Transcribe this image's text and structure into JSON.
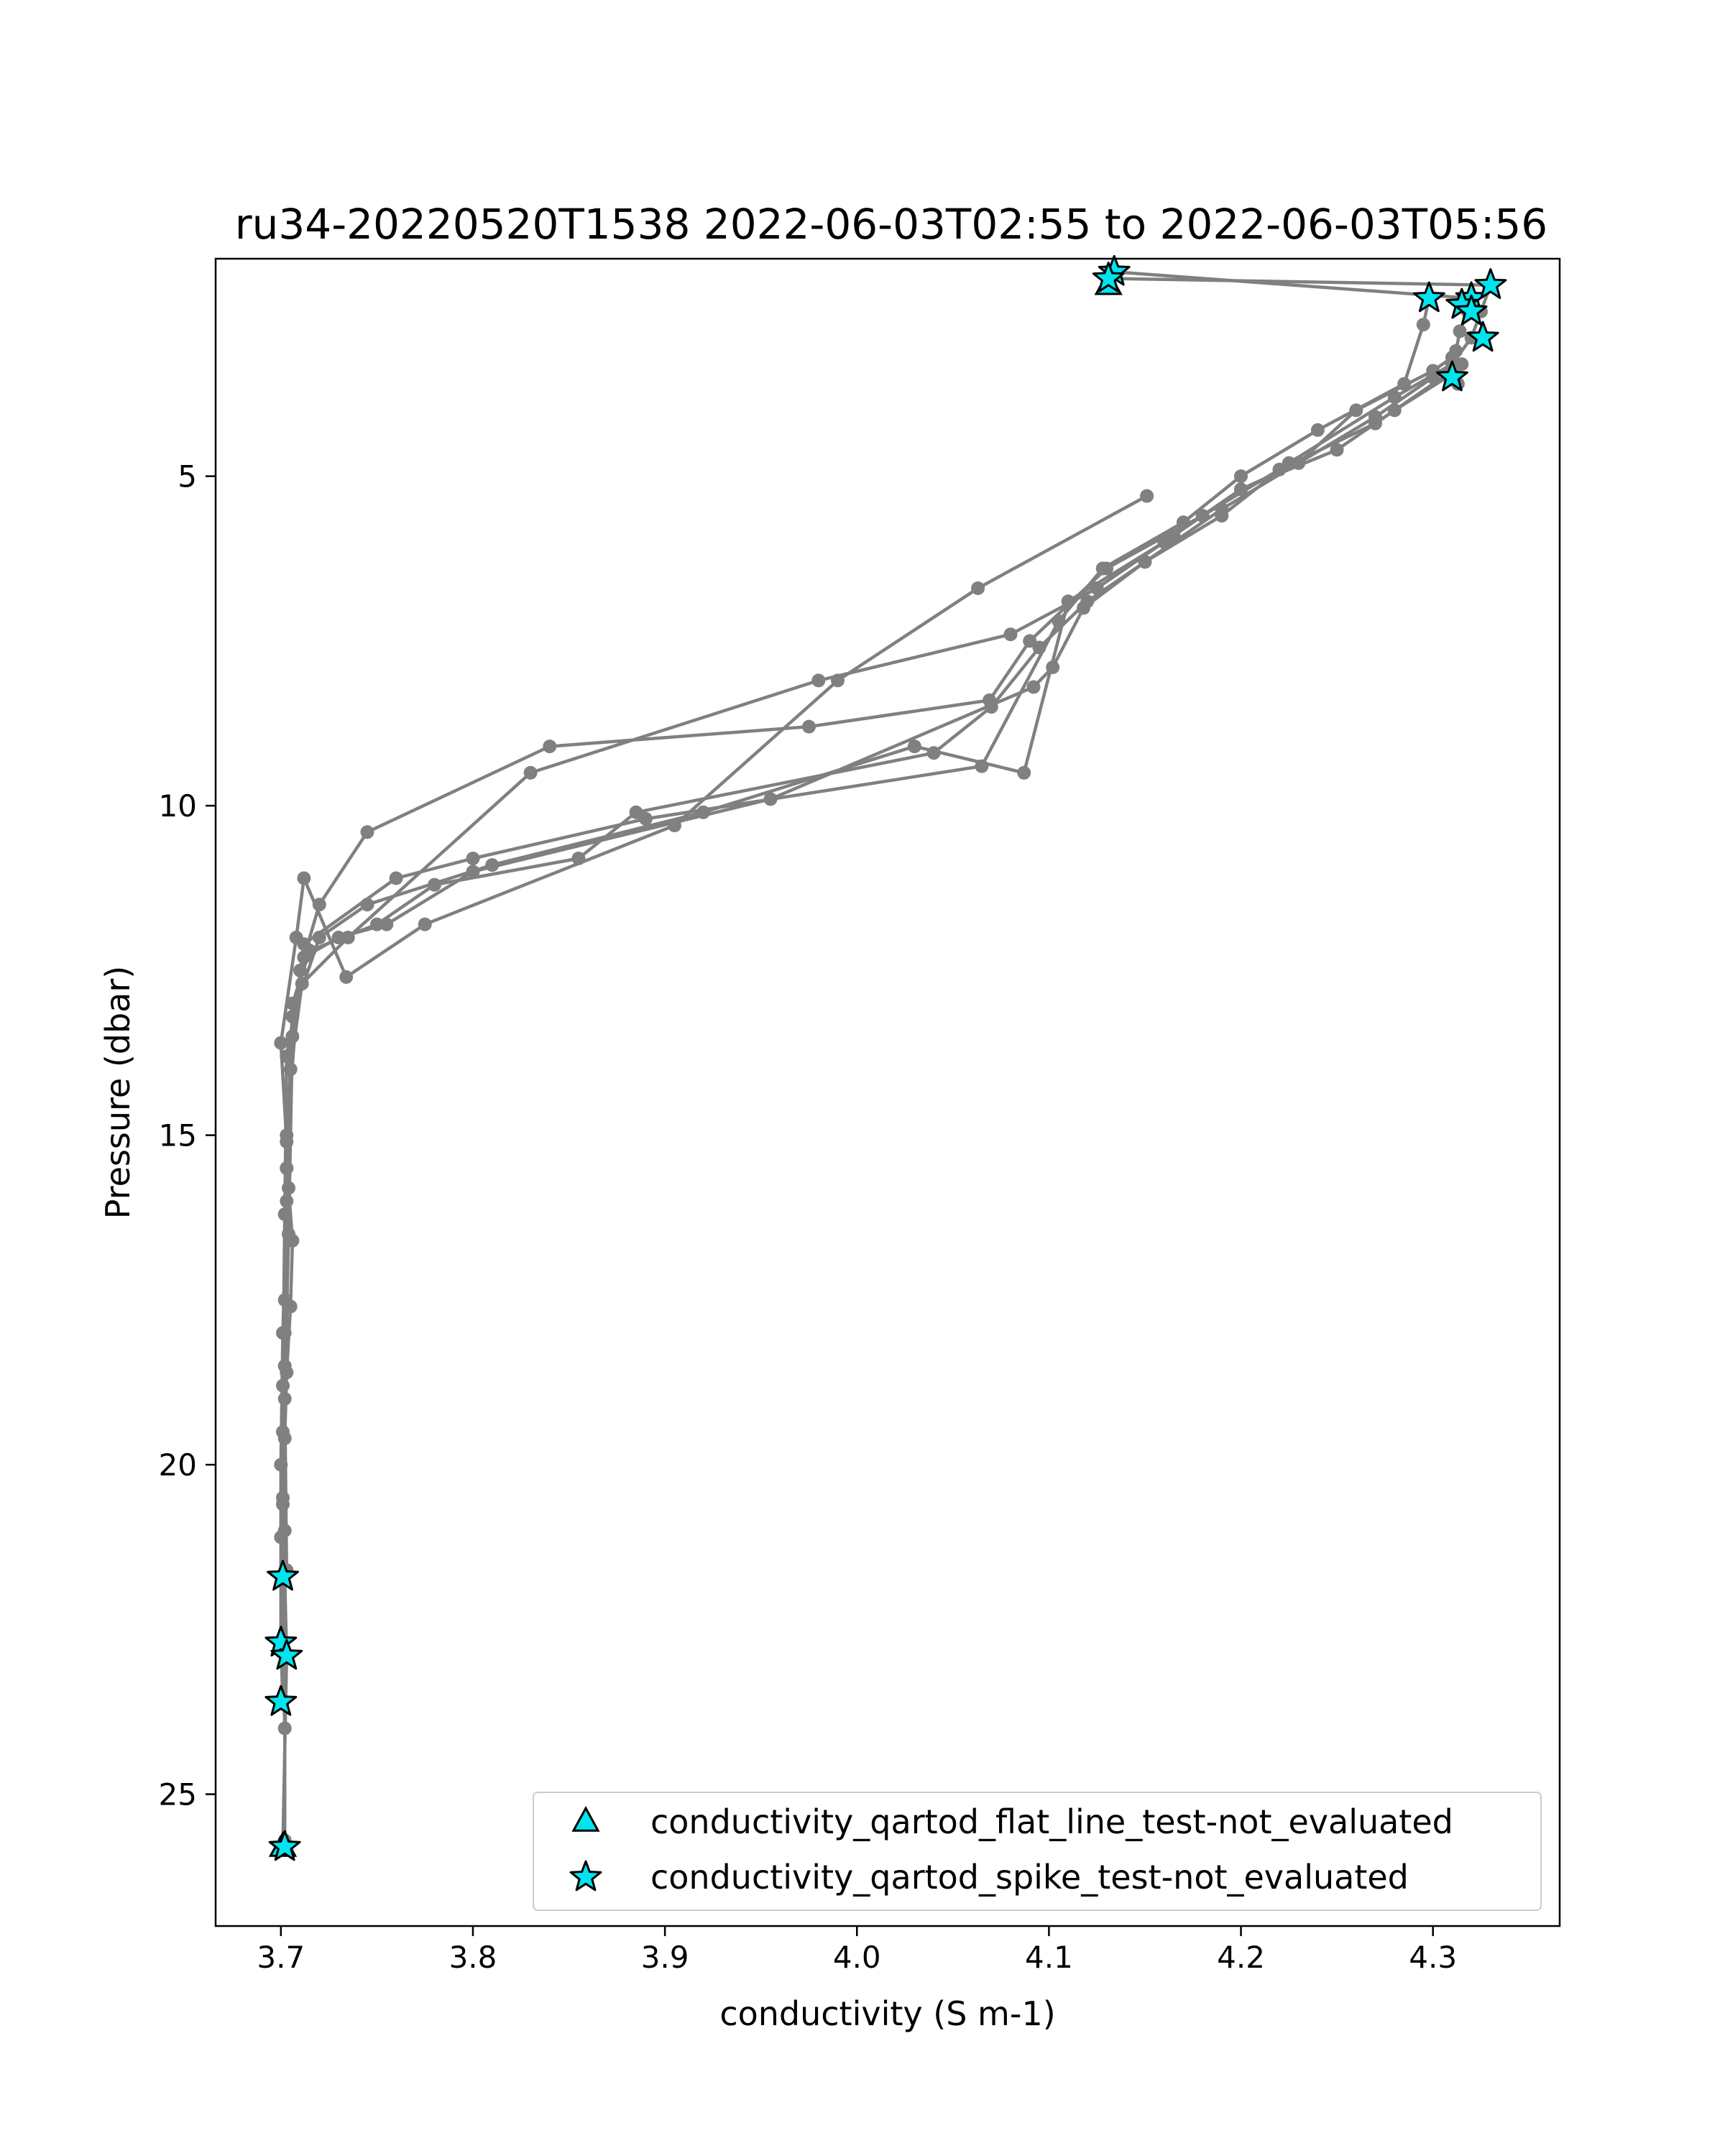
{
  "chart_data": {
    "type": "scatter",
    "title": "ru34-20220520T1538 2022-06-03T02:55 to 2022-06-03T05:56",
    "xlabel": "conductivity (S m-1)",
    "ylabel": "Pressure (dbar)",
    "xlim": [
      3.666,
      4.366
    ],
    "ylim": [
      27.0,
      1.7
    ],
    "y_inverted": true,
    "grid": false,
    "x_ticks": [
      {
        "value": 3.7,
        "label": "3.7"
      },
      {
        "value": 3.8,
        "label": "3.8"
      },
      {
        "value": 3.9,
        "label": "3.9"
      },
      {
        "value": 4.0,
        "label": "4.0"
      },
      {
        "value": 4.1,
        "label": "4.1"
      },
      {
        "value": 4.2,
        "label": "4.2"
      },
      {
        "value": 4.3,
        "label": "4.3"
      }
    ],
    "y_ticks": [
      {
        "value": 5,
        "label": "5"
      },
      {
        "value": 10,
        "label": "10"
      },
      {
        "value": 15,
        "label": "15"
      },
      {
        "value": 20,
        "label": "20"
      },
      {
        "value": 25,
        "label": "25"
      }
    ],
    "series_color": "#808080",
    "flag_color": "#00e5ee",
    "profiles": [
      {
        "x": [
          4.134,
          4.32,
          4.318,
          4.314,
          4.312,
          4.31,
          4.27,
          4.22,
          4.18,
          4.13,
          4.09,
          4.069,
          3.975,
          3.84,
          3.745,
          3.72,
          3.71,
          3.703,
          3.702,
          3.701,
          3.702,
          3.701,
          3.702,
          3.702
        ],
        "y": [
          1.9,
          2.3,
          2.5,
          2.8,
          3.1,
          3.4,
          4.2,
          4.9,
          5.6,
          6.4,
          7.5,
          8.4,
          8.8,
          9.1,
          10.4,
          11.5,
          12.5,
          15.0,
          17.5,
          19.5,
          21.0,
          22.8,
          24.0,
          25.7
        ]
      },
      {
        "x": [
          4.131,
          4.33,
          4.325,
          4.32,
          4.31,
          4.28,
          4.225,
          4.19,
          4.15,
          4.12,
          4.095,
          4.07,
          4.04,
          3.885,
          3.855,
          3.78,
          3.75,
          3.715,
          3.706,
          3.703,
          3.702,
          3.701,
          3.703,
          3.701
        ],
        "y": [
          2.0,
          2.1,
          2.5,
          2.9,
          3.3,
          3.8,
          4.8,
          5.6,
          6.3,
          6.9,
          7.6,
          8.5,
          9.2,
          10.1,
          10.8,
          11.2,
          11.8,
          12.2,
          13.0,
          15.5,
          18.5,
          21.7,
          22.9,
          25.8
        ]
      },
      {
        "x": [
          4.31,
          4.3,
          4.26,
          4.23,
          4.2,
          4.165,
          4.125,
          4.08,
          3.98,
          3.83,
          3.735,
          3.711,
          3.705,
          3.703,
          3.701,
          3.7,
          3.7,
          3.701
        ],
        "y": [
          3.2,
          3.4,
          4.0,
          4.8,
          5.2,
          5.9,
          6.7,
          7.4,
          8.1,
          9.5,
          12.0,
          12.7,
          14.0,
          16.0,
          18.0,
          20.0,
          22.7,
          23.6
        ]
      },
      {
        "x": [
          4.313,
          4.31,
          4.28,
          4.25,
          4.2,
          4.16,
          4.11,
          4.087,
          4.03,
          3.92,
          3.81,
          3.745,
          3.72,
          3.706,
          3.703,
          3.702,
          3.701,
          3.703
        ],
        "y": [
          3.6,
          3.45,
          4.0,
          4.6,
          5.2,
          6.0,
          6.9,
          9.5,
          9.1,
          10.1,
          10.9,
          11.5,
          12.0,
          13.2,
          15.5,
          18.0,
          20.5,
          22.9
        ]
      },
      {
        "x": [
          4.298,
          4.295,
          4.285,
          4.24,
          4.2,
          4.17,
          4.128,
          4.105,
          4.065,
          3.89,
          3.8,
          3.76,
          3.712,
          3.706,
          3.704,
          3.702,
          3.703
        ],
        "y": [
          2.3,
          2.7,
          3.6,
          4.3,
          5.0,
          5.7,
          6.4,
          7.2,
          9.4,
          10.2,
          10.8,
          11.1,
          12.1,
          13.5,
          16.5,
          19.0,
          21.6
        ]
      },
      {
        "x": [
          4.315,
          4.3,
          4.27,
          4.23,
          4.19,
          4.15,
          4.118,
          4.102,
          4.092,
          3.955,
          3.8,
          3.755,
          3.73,
          3.712,
          3.703,
          3.702,
          3.701,
          3.7,
          3.701
        ],
        "y": [
          3.3,
          3.5,
          4.1,
          4.8,
          5.5,
          6.3,
          7.0,
          7.9,
          8.2,
          9.9,
          11.0,
          11.8,
          12.0,
          12.3,
          13.8,
          16.2,
          18.8,
          21.1,
          21.7
        ]
      },
      {
        "x": [
          4.151,
          4.063,
          3.99,
          3.905,
          3.775,
          3.734,
          3.712,
          3.708,
          3.7,
          3.703,
          3.704,
          3.706,
          3.705,
          3.703,
          3.702,
          3.701
        ],
        "y": [
          5.3,
          6.7,
          8.1,
          10.3,
          11.8,
          12.6,
          11.1,
          12.0,
          13.6,
          15.1,
          15.8,
          16.6,
          17.6,
          18.6,
          19.6,
          20.6
        ]
      }
    ],
    "flagged_points": [
      {
        "x": 4.131,
        "y": 2.1,
        "test": "flat_line"
      },
      {
        "x": 3.701,
        "y": 25.8,
        "test": "flat_line"
      },
      {
        "x": 4.134,
        "y": 1.9,
        "test": "spike"
      },
      {
        "x": 4.131,
        "y": 2.0,
        "test": "spike"
      },
      {
        "x": 4.32,
        "y": 2.3,
        "test": "spike"
      },
      {
        "x": 4.33,
        "y": 2.1,
        "test": "spike"
      },
      {
        "x": 4.298,
        "y": 2.3,
        "test": "spike"
      },
      {
        "x": 4.315,
        "y": 2.4,
        "test": "spike"
      },
      {
        "x": 4.32,
        "y": 2.5,
        "test": "spike"
      },
      {
        "x": 4.326,
        "y": 2.9,
        "test": "spike"
      },
      {
        "x": 4.31,
        "y": 3.5,
        "test": "spike"
      },
      {
        "x": 3.701,
        "y": 21.7,
        "test": "spike"
      },
      {
        "x": 3.7,
        "y": 22.7,
        "test": "spike"
      },
      {
        "x": 3.703,
        "y": 22.9,
        "test": "spike"
      },
      {
        "x": 3.7,
        "y": 23.6,
        "test": "spike"
      },
      {
        "x": 3.702,
        "y": 25.8,
        "test": "spike"
      }
    ],
    "legend": {
      "placement": "lower-right",
      "entries": [
        {
          "label": "conductivity_qartod_flat_line_test-not_evaluated",
          "marker": "triangle"
        },
        {
          "label": "conductivity_qartod_spike_test-not_evaluated",
          "marker": "star"
        }
      ]
    }
  }
}
